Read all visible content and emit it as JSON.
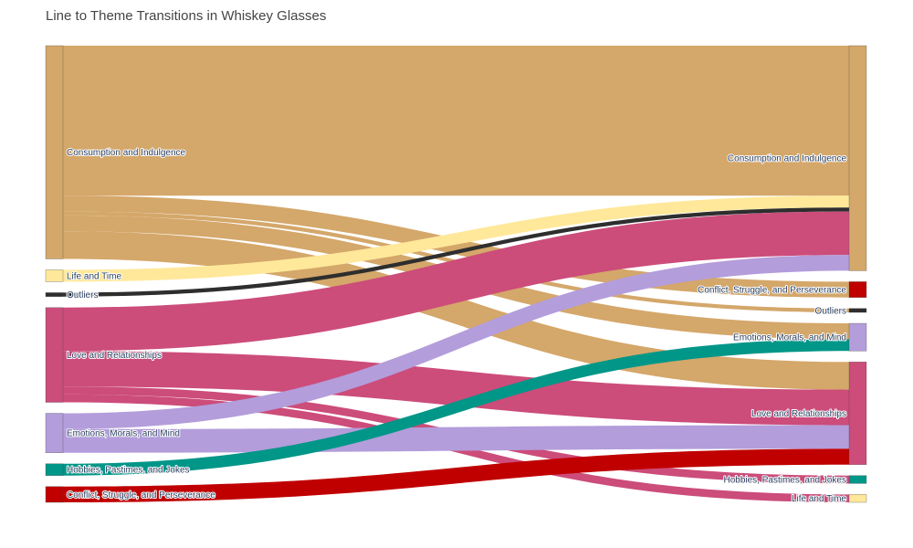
{
  "chart_data": {
    "type": "sankey",
    "title": "Line to Theme Transitions in Whiskey Glasses",
    "left_nodes": [
      {
        "label": "Consumption and Indulgence",
        "color": "#D4A76A"
      },
      {
        "label": "Life and Time",
        "color": "#FFE89A"
      },
      {
        "label": "Outliers",
        "color": "#2E2E2E"
      },
      {
        "label": "Love and Relationships",
        "color": "#CC4C7A"
      },
      {
        "label": "Emotions, Morals, and Mind",
        "color": "#B39DDB"
      },
      {
        "label": "Hobbies, Pastimes, and Jokes",
        "color": "#009688"
      },
      {
        "label": "Conflict, Struggle, and Perseverance",
        "color": "#C00000"
      }
    ],
    "right_nodes": [
      {
        "label": "Consumption and Indulgence",
        "color": "#D4A76A"
      },
      {
        "label": "Conflict, Struggle, and Perseverance",
        "color": "#C00000"
      },
      {
        "label": "Outliers",
        "color": "#2E2E2E"
      },
      {
        "label": "Emotions, Morals, and Mind",
        "color": "#B39DDB"
      },
      {
        "label": "Love and Relationships",
        "color": "#CC4C7A"
      },
      {
        "label": "Hobbies, Pastimes, and Jokes",
        "color": "#009688"
      },
      {
        "label": "Life and Time",
        "color": "#FFE89A"
      }
    ],
    "links": [
      {
        "source": 0,
        "target": 0,
        "value": 38
      },
      {
        "source": 0,
        "target": 1,
        "value": 4
      },
      {
        "source": 0,
        "target": 2,
        "value": 1
      },
      {
        "source": 0,
        "target": 3,
        "value": 4
      },
      {
        "source": 0,
        "target": 4,
        "value": 7
      },
      {
        "source": 1,
        "target": 0,
        "value": 3
      },
      {
        "source": 2,
        "target": 0,
        "value": 1
      },
      {
        "source": 3,
        "target": 0,
        "value": 11
      },
      {
        "source": 3,
        "target": 4,
        "value": 9
      },
      {
        "source": 3,
        "target": 5,
        "value": 2
      },
      {
        "source": 3,
        "target": 6,
        "value": 2
      },
      {
        "source": 4,
        "target": 0,
        "value": 4
      },
      {
        "source": 4,
        "target": 4,
        "value": 6
      },
      {
        "source": 5,
        "target": 3,
        "value": 3
      },
      {
        "source": 6,
        "target": 4,
        "value": 4
      }
    ]
  }
}
